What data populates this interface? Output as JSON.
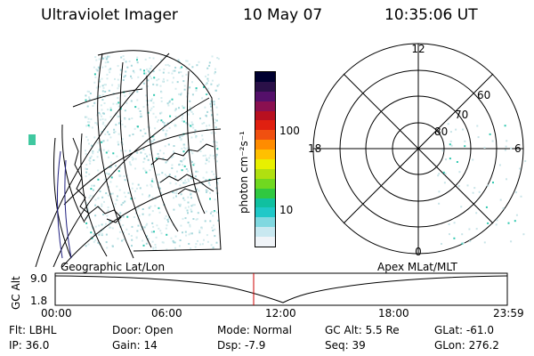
{
  "header": {
    "instrument": "Ultraviolet Imager",
    "date": "10 May 07",
    "time": "10:35:06 UT"
  },
  "colorbar": {
    "unit_label": "photon cm⁻²s⁻¹",
    "tick_labels": [
      "100",
      "10"
    ],
    "colors": [
      "#000030",
      "#2a1048",
      "#54106a",
      "#8a1050",
      "#b81020",
      "#e02010",
      "#f05010",
      "#ff8c00",
      "#ffc000",
      "#e8f000",
      "#b0e010",
      "#70d820",
      "#30c840",
      "#10c0a0",
      "#20c8c8",
      "#80d8e0",
      "#c8e8f0",
      "#f0f4f8"
    ]
  },
  "left_panel": {
    "label": "Geographic Lat/Lon",
    "scatter_color": "#a8d8dc"
  },
  "right_panel": {
    "label": "Apex MLat/MLT",
    "mlt_labels": {
      "top": "12",
      "left": "18",
      "right": "6",
      "bottom": "0"
    },
    "mlat_labels": [
      "60",
      "70",
      "80"
    ]
  },
  "altitude_plot": {
    "ylabel": "GC Alt",
    "yticks": [
      "9.0",
      "1.8"
    ],
    "xticks": [
      "00:00",
      "06:00",
      "12:00",
      "18:00",
      "23:59"
    ],
    "marker_color": "#cc0000"
  },
  "footer": {
    "filter": "Flt: LBHL",
    "ip": "IP: 36.0",
    "door": "Door: Open",
    "gain": "Gain: 14",
    "mode": "Mode: Normal",
    "dsp": "Dsp:    -7.9",
    "gc_alt": "GC Alt: 5.5 Re",
    "seq": "Seq: 39",
    "glat": "GLat: -61.0",
    "glon": "GLon: 276.2"
  }
}
